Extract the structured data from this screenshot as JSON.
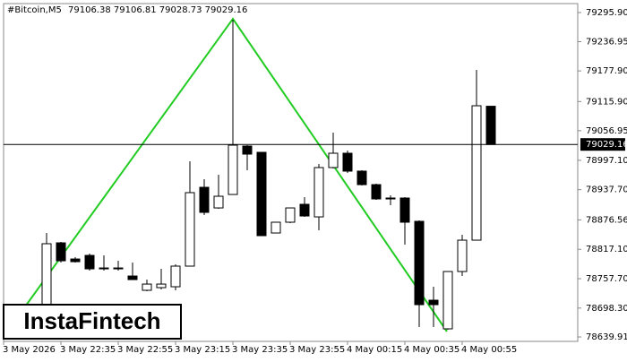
{
  "chart_data": {
    "type": "candlestick",
    "title": "#Bitcoin,M5",
    "subtitle": "79106.38 79106.81 79028.73 79029.16",
    "watermark": "InstaFintech",
    "categories": [
      "3 May 2026",
      null,
      null,
      null,
      "3 May 22:35",
      null,
      null,
      null,
      "3 May 22:55",
      null,
      null,
      null,
      "3 May 23:15",
      null,
      null,
      null,
      "3 May 23:35",
      null,
      null,
      null,
      "3 May 23:55",
      null,
      null,
      null,
      "4 May 00:15",
      null,
      null,
      null,
      "4 May 00:35",
      null,
      null,
      null,
      "4 May 00:55",
      null,
      null
    ],
    "open": [
      null,
      null,
      null,
      78696.1,
      78830.2,
      78797.5,
      78804.8,
      78779.4,
      78779.4,
      78763.1,
      78734.2,
      78739.6,
      78741.4,
      78783.1,
      78942.5,
      78900.8,
      78928.0,
      79025.9,
      79013.2,
      78850.1,
      78871.9,
      78908.1,
      78882.7,
      78982.4,
      79011.4,
      78975.2,
      78947.9,
      78920.8,
      78920.8,
      78873.7,
      78714.2,
      78656.3,
      78772.2,
      78835.6,
      79106.38
    ],
    "high": [
      null,
      null,
      null,
      78850.1,
      78832.0,
      78801.2,
      78808.4,
      78804.8,
      78793.9,
      78790.3,
      78755.9,
      78777.6,
      78786.7,
      78995.1,
      78958.8,
      78967.9,
      79281.4,
      79027.7,
      79013.2,
      78871.9,
      78900.8,
      78922.6,
      78989.6,
      79053.1,
      79016.8,
      78977.0,
      78949.8,
      78926.2,
      78922.6,
      78875.5,
      78741.4,
      78772.2,
      78846.5,
      79179.9,
      79106.81
    ],
    "low": [
      null,
      null,
      null,
      78687.0,
      78790.3,
      78790.3,
      78774.0,
      78774.0,
      78774.0,
      78755.9,
      78732.3,
      78736.0,
      78734.2,
      78783.1,
      78886.3,
      78899.0,
      78928.0,
      78977.0,
      78844.7,
      78850.1,
      78870.0,
      78882.7,
      78855.6,
      78980.6,
      78971.5,
      78946.1,
      78917.2,
      78906.3,
      78826.5,
      78659.8,
      78659.8,
      78654.4,
      78763.1,
      78835.6,
      79028.73
    ],
    "close": [
      null,
      null,
      null,
      78828.4,
      78793.9,
      78792.1,
      78777.6,
      78777.6,
      78777.6,
      78755.9,
      78746.8,
      78746.8,
      78783.1,
      78931.7,
      78891.8,
      78924.4,
      79027.7,
      79009.6,
      78844.7,
      78871.9,
      78900.8,
      78884.5,
      78982.4,
      79011.4,
      78975.2,
      78947.9,
      78919.0,
      78919.0,
      78871.9,
      78705.2,
      78705.2,
      78772.2,
      78835.6,
      79107.4,
      79029.16
    ],
    "current_price": 79029.16,
    "ylim": [
      78630.9,
      79314.0
    ],
    "yticks": [
      {
        "value": 79295.9,
        "label": "79295.90"
      },
      79236.95,
      {
        "value": 79177.9,
        "label": "79177.90"
      },
      {
        "value": 79115.9,
        "label": "79115.90"
      },
      79056.95,
      {
        "value": 78997.1,
        "label": "78997.10"
      },
      {
        "value": 78937.7,
        "label": "78937.70"
      },
      78876.56,
      {
        "value": 78817.1,
        "label": "78817.10"
      },
      {
        "value": 78757.7,
        "label": "78757.70"
      },
      {
        "value": 78698.3,
        "label": "78698.30"
      },
      78639.91
    ],
    "up_color": "#ffffff",
    "down_color": "#000000"
  }
}
